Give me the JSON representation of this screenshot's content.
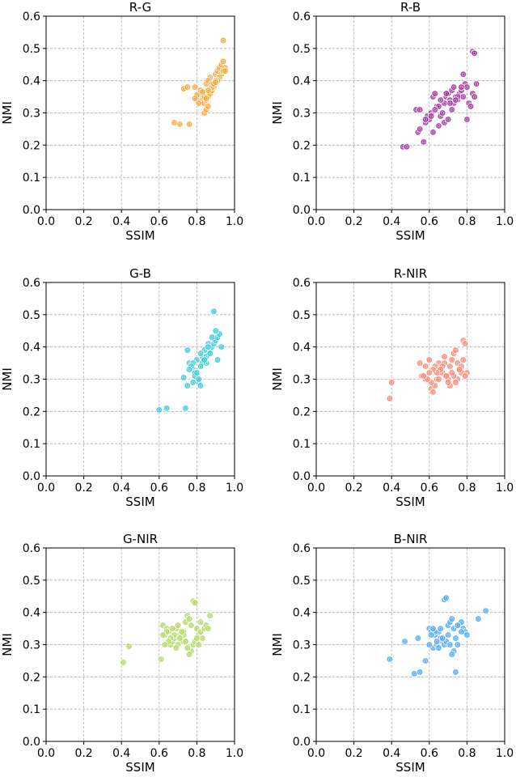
{
  "chart_data": [
    {
      "type": "scatter",
      "title": "R-G",
      "xlabel": "SSIM",
      "ylabel": "NMI",
      "xlim": [
        0.0,
        1.0
      ],
      "ylim": [
        0.0,
        0.6
      ],
      "xticks": [
        "0.0",
        "0.2",
        "0.4",
        "0.6",
        "0.8",
        "1.0"
      ],
      "yticks": [
        "0.0",
        "0.1",
        "0.2",
        "0.3",
        "0.4",
        "0.5",
        "0.6"
      ],
      "grid": true,
      "color": "#ff8c00",
      "x": [
        0.94,
        0.68,
        0.71,
        0.76,
        0.73,
        0.75,
        0.79,
        0.81,
        0.82,
        0.83,
        0.84,
        0.85,
        0.86,
        0.87,
        0.88,
        0.89,
        0.84,
        0.85,
        0.86,
        0.83,
        0.82,
        0.8,
        0.85,
        0.87,
        0.86,
        0.88,
        0.9,
        0.91,
        0.92,
        0.93,
        0.94,
        0.95,
        0.93,
        0.92,
        0.91,
        0.94,
        0.95,
        0.9,
        0.88,
        0.86,
        0.84,
        0.85,
        0.8,
        0.79,
        0.83,
        0.81,
        0.89,
        0.9
      ],
      "y": [
        0.525,
        0.27,
        0.265,
        0.265,
        0.375,
        0.38,
        0.38,
        0.36,
        0.35,
        0.34,
        0.33,
        0.34,
        0.35,
        0.36,
        0.37,
        0.38,
        0.3,
        0.31,
        0.32,
        0.36,
        0.37,
        0.34,
        0.39,
        0.41,
        0.4,
        0.39,
        0.42,
        0.43,
        0.44,
        0.45,
        0.46,
        0.44,
        0.42,
        0.41,
        0.4,
        0.43,
        0.43,
        0.4,
        0.38,
        0.37,
        0.35,
        0.345,
        0.355,
        0.345,
        0.365,
        0.33,
        0.39,
        0.395
      ]
    },
    {
      "type": "scatter",
      "title": "R-B",
      "xlabel": "SSIM",
      "ylabel": "NMI",
      "xlim": [
        0.0,
        1.0
      ],
      "ylim": [
        0.0,
        0.6
      ],
      "xticks": [
        "0.0",
        "0.2",
        "0.4",
        "0.6",
        "0.8",
        "1.0"
      ],
      "yticks": [
        "0.0",
        "0.1",
        "0.2",
        "0.3",
        "0.4",
        "0.5",
        "0.6"
      ],
      "grid": true,
      "color": "#8b008b",
      "x": [
        0.83,
        0.84,
        0.46,
        0.48,
        0.53,
        0.55,
        0.54,
        0.55,
        0.57,
        0.58,
        0.59,
        0.6,
        0.61,
        0.62,
        0.63,
        0.64,
        0.65,
        0.66,
        0.67,
        0.68,
        0.69,
        0.7,
        0.71,
        0.72,
        0.73,
        0.74,
        0.75,
        0.76,
        0.77,
        0.78,
        0.79,
        0.8,
        0.81,
        0.82,
        0.83,
        0.84,
        0.85,
        0.78,
        0.8,
        0.62,
        0.61,
        0.65,
        0.68,
        0.7,
        0.72,
        0.73,
        0.75,
        0.63,
        0.58,
        0.66,
        0.69,
        0.71,
        0.74,
        0.77
      ],
      "y": [
        0.49,
        0.485,
        0.195,
        0.195,
        0.31,
        0.31,
        0.24,
        0.25,
        0.21,
        0.27,
        0.29,
        0.28,
        0.3,
        0.35,
        0.36,
        0.32,
        0.26,
        0.29,
        0.3,
        0.33,
        0.35,
        0.36,
        0.34,
        0.37,
        0.38,
        0.35,
        0.34,
        0.36,
        0.37,
        0.42,
        0.39,
        0.38,
        0.33,
        0.32,
        0.36,
        0.35,
        0.39,
        0.35,
        0.28,
        0.24,
        0.29,
        0.32,
        0.27,
        0.28,
        0.31,
        0.33,
        0.35,
        0.31,
        0.28,
        0.34,
        0.36,
        0.33,
        0.34,
        0.38
      ]
    },
    {
      "type": "scatter",
      "title": "G-B",
      "xlabel": "SSIM",
      "ylabel": "NMI",
      "xlim": [
        0.0,
        1.0
      ],
      "ylim": [
        0.0,
        0.6
      ],
      "xticks": [
        "0.0",
        "0.2",
        "0.4",
        "0.6",
        "0.8",
        "1.0"
      ],
      "yticks": [
        "0.0",
        "0.1",
        "0.2",
        "0.3",
        "0.4",
        "0.5",
        "0.6"
      ],
      "grid": true,
      "color": "#00bcd4",
      "x": [
        0.89,
        0.6,
        0.64,
        0.74,
        0.73,
        0.75,
        0.76,
        0.77,
        0.78,
        0.79,
        0.8,
        0.81,
        0.82,
        0.83,
        0.84,
        0.85,
        0.86,
        0.87,
        0.88,
        0.89,
        0.9,
        0.91,
        0.92,
        0.93,
        0.91,
        0.9,
        0.88,
        0.86,
        0.84,
        0.82,
        0.8,
        0.78,
        0.77,
        0.76,
        0.79,
        0.81,
        0.83,
        0.85,
        0.87,
        0.75,
        0.78,
        0.8,
        0.82,
        0.84,
        0.86
      ],
      "y": [
        0.51,
        0.205,
        0.21,
        0.21,
        0.305,
        0.39,
        0.35,
        0.34,
        0.33,
        0.32,
        0.3,
        0.29,
        0.28,
        0.37,
        0.36,
        0.35,
        0.38,
        0.39,
        0.4,
        0.41,
        0.42,
        0.43,
        0.44,
        0.4,
        0.36,
        0.45,
        0.43,
        0.41,
        0.39,
        0.38,
        0.36,
        0.35,
        0.34,
        0.33,
        0.31,
        0.3,
        0.35,
        0.37,
        0.38,
        0.28,
        0.29,
        0.32,
        0.34,
        0.36,
        0.4
      ]
    },
    {
      "type": "scatter",
      "title": "R-NIR",
      "xlabel": "SSIM",
      "ylabel": "NMI",
      "xlim": [
        0.0,
        1.0
      ],
      "ylim": [
        0.0,
        0.6
      ],
      "xticks": [
        "0.0",
        "0.2",
        "0.4",
        "0.6",
        "0.8",
        "1.0"
      ],
      "yticks": [
        "0.0",
        "0.1",
        "0.2",
        "0.3",
        "0.4",
        "0.5",
        "0.6"
      ],
      "grid": true,
      "color": "#ff6347",
      "x": [
        0.39,
        0.4,
        0.55,
        0.56,
        0.58,
        0.6,
        0.61,
        0.62,
        0.63,
        0.64,
        0.65,
        0.66,
        0.67,
        0.68,
        0.69,
        0.7,
        0.71,
        0.72,
        0.73,
        0.74,
        0.75,
        0.76,
        0.77,
        0.78,
        0.79,
        0.8,
        0.79,
        0.78,
        0.77,
        0.76,
        0.75,
        0.74,
        0.73,
        0.72,
        0.71,
        0.7,
        0.69,
        0.68,
        0.67,
        0.66,
        0.65,
        0.64,
        0.63,
        0.62,
        0.61,
        0.6,
        0.59,
        0.58,
        0.57
      ],
      "y": [
        0.24,
        0.29,
        0.35,
        0.31,
        0.3,
        0.36,
        0.27,
        0.26,
        0.28,
        0.3,
        0.35,
        0.33,
        0.32,
        0.37,
        0.31,
        0.3,
        0.34,
        0.36,
        0.38,
        0.39,
        0.35,
        0.33,
        0.32,
        0.42,
        0.41,
        0.32,
        0.31,
        0.36,
        0.34,
        0.33,
        0.3,
        0.29,
        0.31,
        0.32,
        0.28,
        0.29,
        0.31,
        0.35,
        0.34,
        0.33,
        0.3,
        0.32,
        0.34,
        0.33,
        0.29,
        0.32,
        0.3,
        0.34,
        0.31
      ]
    },
    {
      "type": "scatter",
      "title": "G-NIR",
      "xlabel": "SSIM",
      "ylabel": "NMI",
      "xlim": [
        0.0,
        1.0
      ],
      "ylim": [
        0.0,
        0.6
      ],
      "xticks": [
        "0.0",
        "0.2",
        "0.4",
        "0.6",
        "0.8",
        "1.0"
      ],
      "yticks": [
        "0.0",
        "0.1",
        "0.2",
        "0.3",
        "0.4",
        "0.5",
        "0.6"
      ],
      "grid": true,
      "color": "#9acd32",
      "x": [
        0.41,
        0.44,
        0.61,
        0.62,
        0.63,
        0.64,
        0.65,
        0.66,
        0.67,
        0.68,
        0.69,
        0.7,
        0.71,
        0.72,
        0.73,
        0.74,
        0.75,
        0.76,
        0.77,
        0.78,
        0.79,
        0.8,
        0.81,
        0.82,
        0.83,
        0.84,
        0.85,
        0.86,
        0.87,
        0.78,
        0.77,
        0.76,
        0.75,
        0.74,
        0.73,
        0.72,
        0.71,
        0.7,
        0.69,
        0.68,
        0.67,
        0.66,
        0.65,
        0.64,
        0.63,
        0.62,
        0.79,
        0.8,
        0.81,
        0.82
      ],
      "y": [
        0.245,
        0.295,
        0.255,
        0.36,
        0.33,
        0.35,
        0.34,
        0.3,
        0.31,
        0.32,
        0.35,
        0.36,
        0.33,
        0.31,
        0.34,
        0.37,
        0.39,
        0.38,
        0.36,
        0.435,
        0.43,
        0.35,
        0.33,
        0.34,
        0.32,
        0.35,
        0.36,
        0.35,
        0.39,
        0.3,
        0.28,
        0.27,
        0.29,
        0.31,
        0.33,
        0.34,
        0.32,
        0.3,
        0.29,
        0.33,
        0.35,
        0.32,
        0.31,
        0.34,
        0.3,
        0.33,
        0.31,
        0.32,
        0.3,
        0.37
      ]
    },
    {
      "type": "scatter",
      "title": "B-NIR",
      "xlabel": "SSIM",
      "ylabel": "NMI",
      "xlim": [
        0.0,
        1.0
      ],
      "ylim": [
        0.0,
        0.6
      ],
      "xticks": [
        "0.0",
        "0.2",
        "0.4",
        "0.6",
        "0.8",
        "1.0"
      ],
      "yticks": [
        "0.0",
        "0.1",
        "0.2",
        "0.3",
        "0.4",
        "0.5",
        "0.6"
      ],
      "grid": true,
      "color": "#1e90ff",
      "x": [
        0.39,
        0.47,
        0.52,
        0.55,
        0.54,
        0.58,
        0.6,
        0.61,
        0.62,
        0.63,
        0.64,
        0.65,
        0.66,
        0.67,
        0.68,
        0.69,
        0.7,
        0.71,
        0.72,
        0.73,
        0.74,
        0.75,
        0.76,
        0.77,
        0.78,
        0.79,
        0.8,
        0.86,
        0.9,
        0.68,
        0.69,
        0.74,
        0.73,
        0.72,
        0.71,
        0.7,
        0.66,
        0.65,
        0.64,
        0.63,
        0.62,
        0.61,
        0.6,
        0.67,
        0.75,
        0.77
      ],
      "y": [
        0.255,
        0.31,
        0.21,
        0.215,
        0.32,
        0.25,
        0.35,
        0.34,
        0.29,
        0.33,
        0.3,
        0.34,
        0.35,
        0.31,
        0.44,
        0.445,
        0.36,
        0.37,
        0.38,
        0.35,
        0.32,
        0.3,
        0.36,
        0.37,
        0.35,
        0.34,
        0.33,
        0.38,
        0.405,
        0.3,
        0.31,
        0.215,
        0.28,
        0.27,
        0.3,
        0.33,
        0.32,
        0.29,
        0.31,
        0.34,
        0.35,
        0.33,
        0.3,
        0.32,
        0.36,
        0.34
      ]
    }
  ]
}
